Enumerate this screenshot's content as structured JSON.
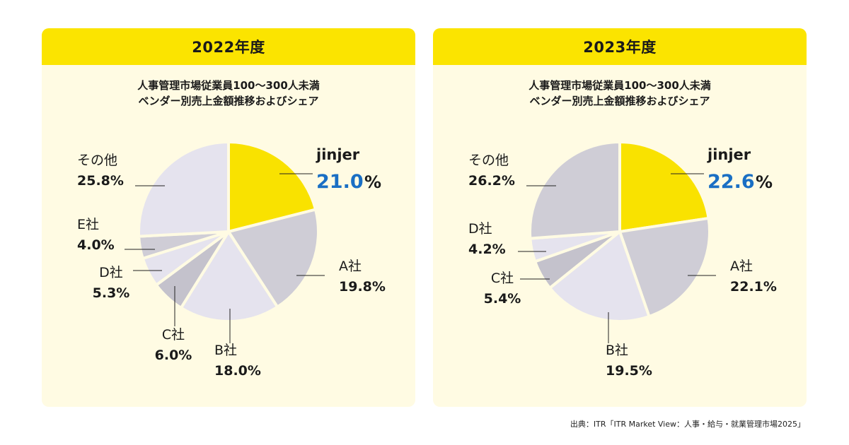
{
  "source_note": "出典：ITR「ITR Market View：人事・給与・就業管理市場2025」",
  "colors": {
    "header": "#fbe400",
    "panel_bg": "#fffbe3",
    "highlight_value": "#1a6fc4",
    "slice_colors": [
      "#f9e200",
      "#cfcdd6",
      "#e5e3ee",
      "#c4c2cc",
      "#e5e3ee",
      "#cfcdd6",
      "#e5e3ee"
    ]
  },
  "chart_data": [
    {
      "type": "pie",
      "title": "2022年度",
      "subtitle_line1": "人事管理市場従業員100～300人未満",
      "subtitle_line2": "ベンダー別売上金額推移およびシェア",
      "slices": [
        {
          "label": "jinjer",
          "value": 21.0,
          "value_text": "21.0",
          "unit": "%",
          "highlight": true,
          "color": "#f9e200"
        },
        {
          "label": "A社",
          "value": 19.8,
          "value_text": "19.8%",
          "color": "#cfcdd6"
        },
        {
          "label": "B社",
          "value": 18.0,
          "value_text": "18.0%",
          "color": "#e5e3ee"
        },
        {
          "label": "C社",
          "value": 6.0,
          "value_text": "6.0%",
          "color": "#c4c2cc"
        },
        {
          "label": "D社",
          "value": 5.3,
          "value_text": "5.3%",
          "color": "#e5e3ee"
        },
        {
          "label": "E社",
          "value": 4.0,
          "value_text": "4.0%",
          "color": "#cfcdd6"
        },
        {
          "label": "その他",
          "value": 25.8,
          "value_text": "25.8%",
          "color": "#e5e3ee"
        }
      ]
    },
    {
      "type": "pie",
      "title": "2023年度",
      "subtitle_line1": "人事管理市場従業員100～300人未満",
      "subtitle_line2": "ベンダー別売上金額推移およびシェア",
      "slices": [
        {
          "label": "jinjer",
          "value": 22.6,
          "value_text": "22.6",
          "unit": "%",
          "highlight": true,
          "color": "#f9e200"
        },
        {
          "label": "A社",
          "value": 22.1,
          "value_text": "22.1%",
          "color": "#cfcdd6"
        },
        {
          "label": "B社",
          "value": 19.5,
          "value_text": "19.5%",
          "color": "#e5e3ee"
        },
        {
          "label": "C社",
          "value": 5.4,
          "value_text": "5.4%",
          "color": "#c4c2cc"
        },
        {
          "label": "D社",
          "value": 4.2,
          "value_text": "4.2%",
          "color": "#e5e3ee"
        },
        {
          "label": "その他",
          "value": 26.2,
          "value_text": "26.2%",
          "color": "#cfcdd6"
        }
      ]
    }
  ]
}
